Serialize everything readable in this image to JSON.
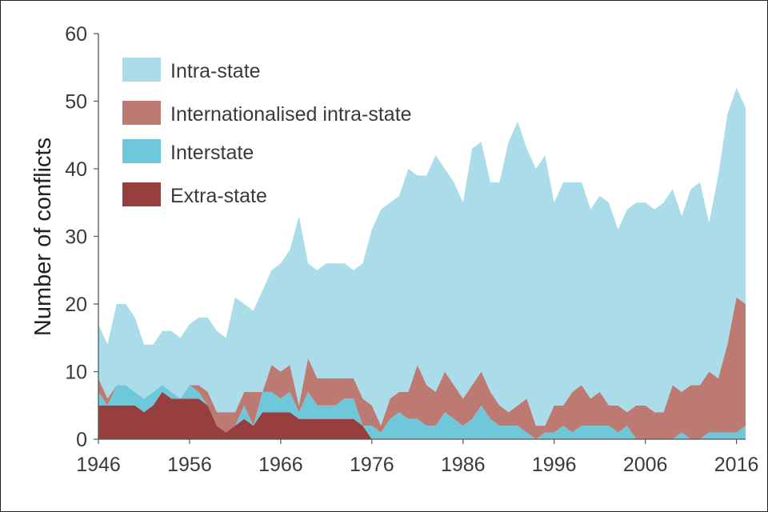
{
  "chart_data": {
    "type": "area",
    "stacked": true,
    "title": "",
    "xlabel": "",
    "ylabel": "Number of conflicts",
    "xlim": [
      1946,
      2017
    ],
    "ylim": [
      0,
      60
    ],
    "yticks": [
      0,
      10,
      20,
      30,
      40,
      50,
      60
    ],
    "xticks": [
      1946,
      1956,
      1966,
      1976,
      1986,
      1996,
      2006,
      2016
    ],
    "x": [
      1946,
      1947,
      1948,
      1949,
      1950,
      1951,
      1952,
      1953,
      1954,
      1955,
      1956,
      1957,
      1958,
      1959,
      1960,
      1961,
      1962,
      1963,
      1964,
      1965,
      1966,
      1967,
      1968,
      1969,
      1970,
      1971,
      1972,
      1973,
      1974,
      1975,
      1976,
      1977,
      1978,
      1979,
      1980,
      1981,
      1982,
      1983,
      1984,
      1985,
      1986,
      1987,
      1988,
      1989,
      1990,
      1991,
      1992,
      1993,
      1994,
      1995,
      1996,
      1997,
      1998,
      1999,
      2000,
      2001,
      2002,
      2003,
      2004,
      2005,
      2006,
      2007,
      2008,
      2009,
      2010,
      2011,
      2012,
      2013,
      2014,
      2015,
      2016,
      2017
    ],
    "series": [
      {
        "name": "Extra-state",
        "color": "#963f3e",
        "values": [
          5,
          5,
          5,
          5,
          5,
          4,
          5,
          7,
          6,
          6,
          6,
          6,
          5,
          2,
          1,
          2,
          3,
          2,
          4,
          4,
          4,
          4,
          3,
          3,
          3,
          3,
          3,
          3,
          3,
          2,
          0,
          0,
          0,
          0,
          0,
          0,
          0,
          0,
          0,
          0,
          0,
          0,
          0,
          0,
          0,
          0,
          0,
          0,
          0,
          0,
          0,
          0,
          0,
          0,
          0,
          0,
          0,
          0,
          0,
          0,
          0,
          0,
          0,
          0,
          0,
          0,
          0,
          0,
          0,
          0,
          0,
          0
        ]
      },
      {
        "name": "Interstate",
        "color": "#6fc8da",
        "values": [
          2,
          0,
          3,
          3,
          2,
          2,
          2,
          1,
          1,
          0,
          2,
          1,
          0,
          0,
          0,
          0,
          2,
          0,
          3,
          3,
          2,
          3,
          1,
          4,
          2,
          2,
          2,
          3,
          3,
          0,
          2,
          1,
          3,
          4,
          3,
          3,
          2,
          2,
          4,
          3,
          2,
          3,
          5,
          3,
          2,
          2,
          2,
          1,
          0,
          1,
          1,
          2,
          1,
          2,
          2,
          2,
          2,
          1,
          2,
          0,
          0,
          0,
          0,
          0,
          1,
          0,
          0,
          1,
          1,
          1,
          1,
          2
        ]
      },
      {
        "name": "Internationalised intra-state",
        "color": "#bd7a73",
        "values": [
          2,
          1,
          0,
          0,
          0,
          0,
          0,
          0,
          0,
          0,
          0,
          1,
          2,
          2,
          3,
          2,
          2,
          5,
          0,
          4,
          4,
          4,
          1,
          5,
          4,
          4,
          4,
          3,
          3,
          4,
          3,
          1,
          3,
          3,
          4,
          8,
          6,
          5,
          6,
          5,
          4,
          5,
          5,
          4,
          3,
          2,
          3,
          5,
          2,
          1,
          4,
          3,
          6,
          6,
          4,
          5,
          3,
          4,
          2,
          5,
          5,
          4,
          4,
          8,
          6,
          8,
          8,
          9,
          8,
          13,
          20,
          18
        ]
      },
      {
        "name": "Intra-state",
        "color": "#aadde9",
        "values": [
          8,
          8,
          12,
          12,
          11,
          8,
          7,
          8,
          9,
          9,
          9,
          10,
          11,
          12,
          11,
          17,
          13,
          12,
          15,
          14,
          16,
          17,
          28,
          14,
          16,
          17,
          17,
          17,
          16,
          20,
          26,
          32,
          29,
          29,
          33,
          28,
          31,
          35,
          30,
          30,
          29,
          35,
          34,
          31,
          33,
          40,
          42,
          37,
          38,
          40,
          30,
          33,
          31,
          30,
          28,
          29,
          30,
          26,
          30,
          30,
          30,
          30,
          31,
          29,
          26,
          29,
          30,
          22,
          30,
          34,
          31,
          29
        ]
      }
    ],
    "legend": {
      "position": "top-left",
      "entries": [
        "Intra-state",
        "Internationalised intra-state",
        "Interstate",
        "Extra-state"
      ]
    },
    "grid": false
  },
  "colors": {
    "frame": "#222222",
    "axis": "#555555",
    "text": "#3a3a3a"
  }
}
